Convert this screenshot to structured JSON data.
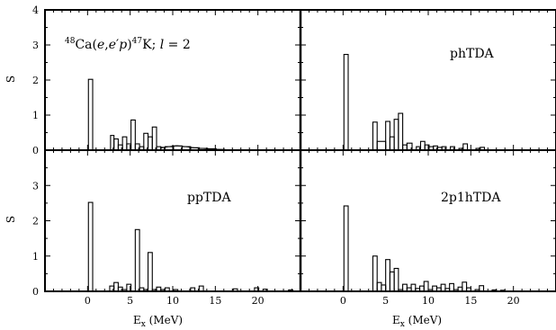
{
  "chart_data": [
    {
      "type": "bar",
      "panel": "top-left",
      "label_text": "Ca(e,e'p)K; l = 2",
      "label_parts": {
        "mass_a": "48",
        "element_a": "Ca",
        "paren_open": "(",
        "reaction_e1": "e",
        "comma": ",",
        "reaction_e2": "e",
        "prime": "′",
        "reaction_p": "p",
        "paren_close": ")",
        "mass_b": "47",
        "element_b": "K",
        "semicolon": "; ",
        "l_symbol": "l",
        "l_value": " = 2"
      },
      "ylabel": "S",
      "xlabel": "",
      "xlim": [
        -5,
        25
      ],
      "ylim": [
        0,
        4
      ],
      "yticks": [
        "0",
        "1",
        "2",
        "3",
        "4"
      ],
      "xticks": [],
      "bars": [
        {
          "x0": 0.1,
          "x1": 0.6,
          "y": 2.02
        },
        {
          "x0": 2.7,
          "x1": 3.1,
          "y": 0.42
        },
        {
          "x0": 3.1,
          "x1": 3.6,
          "y": 0.32
        },
        {
          "x0": 3.6,
          "x1": 4.1,
          "y": 0.15
        },
        {
          "x0": 4.1,
          "x1": 4.6,
          "y": 0.38
        },
        {
          "x0": 4.6,
          "x1": 5.1,
          "y": 0.18
        },
        {
          "x0": 5.1,
          "x1": 5.6,
          "y": 0.86
        },
        {
          "x0": 5.6,
          "x1": 6.1,
          "y": 0.18
        },
        {
          "x0": 6.1,
          "x1": 6.6,
          "y": 0.1
        },
        {
          "x0": 6.6,
          "x1": 7.1,
          "y": 0.48
        },
        {
          "x0": 7.1,
          "x1": 7.6,
          "y": 0.38
        },
        {
          "x0": 7.6,
          "x1": 8.1,
          "y": 0.66
        },
        {
          "x0": 8.1,
          "x1": 8.6,
          "y": 0.1
        },
        {
          "x0": 8.6,
          "x1": 9.1,
          "y": 0.08
        },
        {
          "x0": 9.1,
          "x1": 10.1,
          "y": 0.1
        },
        {
          "x0": 10.1,
          "x1": 11.1,
          "y": 0.12
        },
        {
          "x0": 11.1,
          "x1": 12.1,
          "y": 0.1
        },
        {
          "x0": 12.1,
          "x1": 13.1,
          "y": 0.07
        },
        {
          "x0": 13.1,
          "x1": 14.1,
          "y": 0.05
        },
        {
          "x0": 14.1,
          "x1": 15.1,
          "y": 0.04
        },
        {
          "x0": 15.1,
          "x1": 16.1,
          "y": 0.02
        }
      ],
      "curve": [
        [
          8.6,
          0.06
        ],
        [
          9.5,
          0.1
        ],
        [
          10.5,
          0.13
        ],
        [
          11.5,
          0.1
        ],
        [
          12.5,
          0.07
        ],
        [
          13.5,
          0.05
        ],
        [
          14.5,
          0.03
        ],
        [
          16,
          0.015
        ],
        [
          18,
          0.005
        ]
      ]
    },
    {
      "type": "bar",
      "panel": "top-right",
      "label_text": "phTDA",
      "ylabel": "",
      "xlabel": "",
      "xlim": [
        -5,
        25
      ],
      "ylim": [
        0,
        4
      ],
      "yticks": [],
      "xticks": [],
      "bars": [
        {
          "x0": 0.1,
          "x1": 0.6,
          "y": 2.73
        },
        {
          "x0": 3.5,
          "x1": 4.0,
          "y": 0.8
        },
        {
          "x0": 4.0,
          "x1": 5.0,
          "y": 0.25
        },
        {
          "x0": 5.0,
          "x1": 5.5,
          "y": 0.82
        },
        {
          "x0": 5.5,
          "x1": 6.0,
          "y": 0.38
        },
        {
          "x0": 6.0,
          "x1": 6.5,
          "y": 0.88
        },
        {
          "x0": 6.5,
          "x1": 7.0,
          "y": 1.05
        },
        {
          "x0": 7.0,
          "x1": 7.5,
          "y": 0.15
        },
        {
          "x0": 7.5,
          "x1": 8.1,
          "y": 0.2
        },
        {
          "x0": 8.6,
          "x1": 9.1,
          "y": 0.1
        },
        {
          "x0": 9.1,
          "x1": 9.6,
          "y": 0.25
        },
        {
          "x0": 9.6,
          "x1": 10.1,
          "y": 0.15
        },
        {
          "x0": 10.1,
          "x1": 10.6,
          "y": 0.1
        },
        {
          "x0": 10.6,
          "x1": 11.1,
          "y": 0.12
        },
        {
          "x0": 11.1,
          "x1": 11.6,
          "y": 0.08
        },
        {
          "x0": 11.6,
          "x1": 12.1,
          "y": 0.1
        },
        {
          "x0": 12.6,
          "x1": 13.1,
          "y": 0.1
        },
        {
          "x0": 13.6,
          "x1": 14.1,
          "y": 0.05
        },
        {
          "x0": 14.1,
          "x1": 14.6,
          "y": 0.18
        },
        {
          "x0": 15.6,
          "x1": 16.1,
          "y": 0.05
        },
        {
          "x0": 16.1,
          "x1": 16.6,
          "y": 0.08
        }
      ]
    },
    {
      "type": "bar",
      "panel": "bottom-left",
      "label_text": "ppTDA",
      "ylabel": "S",
      "xlabel": "Ex (MeV)",
      "xlabel_main": "E",
      "xlabel_sub": "x",
      "xlabel_unit": " (MeV)",
      "xlim": [
        -5,
        25
      ],
      "ylim": [
        0,
        4
      ],
      "yticks": [
        "0",
        "1",
        "2",
        "3"
      ],
      "xticks": [
        "0",
        "5",
        "10",
        "15",
        "20"
      ],
      "bars": [
        {
          "x0": 0.1,
          "x1": 0.6,
          "y": 2.52
        },
        {
          "x0": 2.6,
          "x1": 3.1,
          "y": 0.15
        },
        {
          "x0": 3.1,
          "x1": 3.6,
          "y": 0.25
        },
        {
          "x0": 3.6,
          "x1": 4.1,
          "y": 0.12
        },
        {
          "x0": 4.1,
          "x1": 4.6,
          "y": 0.05
        },
        {
          "x0": 4.6,
          "x1": 5.1,
          "y": 0.2
        },
        {
          "x0": 5.6,
          "x1": 6.1,
          "y": 1.75
        },
        {
          "x0": 6.1,
          "x1": 6.6,
          "y": 0.1
        },
        {
          "x0": 6.6,
          "x1": 7.1,
          "y": 0.05
        },
        {
          "x0": 7.1,
          "x1": 7.6,
          "y": 1.1
        },
        {
          "x0": 7.6,
          "x1": 8.1,
          "y": 0.05
        },
        {
          "x0": 8.1,
          "x1": 8.6,
          "y": 0.12
        },
        {
          "x0": 8.6,
          "x1": 9.1,
          "y": 0.05
        },
        {
          "x0": 9.1,
          "x1": 9.6,
          "y": 0.1
        },
        {
          "x0": 10.1,
          "x1": 10.6,
          "y": 0.05
        },
        {
          "x0": 12.1,
          "x1": 12.6,
          "y": 0.1
        },
        {
          "x0": 13.1,
          "x1": 13.6,
          "y": 0.15
        },
        {
          "x0": 17.1,
          "x1": 17.6,
          "y": 0.07
        },
        {
          "x0": 19.6,
          "x1": 20.1,
          "y": 0.1
        },
        {
          "x0": 20.6,
          "x1": 21.1,
          "y": 0.06
        },
        {
          "x0": 23.6,
          "x1": 24.1,
          "y": 0.04
        }
      ]
    },
    {
      "type": "bar",
      "panel": "bottom-right",
      "label_text": "2p1hTDA",
      "ylabel": "",
      "xlabel": "Ex (MeV)",
      "xlabel_main": "E",
      "xlabel_sub": "x",
      "xlabel_unit": " (MeV)",
      "xlim": [
        -5,
        25
      ],
      "ylim": [
        0,
        4
      ],
      "yticks": [],
      "xticks": [
        "0",
        "5",
        "10",
        "15",
        "20"
      ],
      "bars": [
        {
          "x0": 0.1,
          "x1": 0.6,
          "y": 2.42
        },
        {
          "x0": 3.5,
          "x1": 4.0,
          "y": 1.0
        },
        {
          "x0": 4.0,
          "x1": 4.5,
          "y": 0.25
        },
        {
          "x0": 4.5,
          "x1": 5.0,
          "y": 0.18
        },
        {
          "x0": 5.0,
          "x1": 5.5,
          "y": 0.9
        },
        {
          "x0": 5.5,
          "x1": 6.0,
          "y": 0.55
        },
        {
          "x0": 6.0,
          "x1": 6.5,
          "y": 0.65
        },
        {
          "x0": 6.5,
          "x1": 7.0,
          "y": 0.05
        },
        {
          "x0": 7.0,
          "x1": 7.5,
          "y": 0.2
        },
        {
          "x0": 7.5,
          "x1": 8.0,
          "y": 0.1
        },
        {
          "x0": 8.0,
          "x1": 8.5,
          "y": 0.2
        },
        {
          "x0": 8.5,
          "x1": 9.0,
          "y": 0.08
        },
        {
          "x0": 9.0,
          "x1": 9.5,
          "y": 0.15
        },
        {
          "x0": 9.5,
          "x1": 10.0,
          "y": 0.28
        },
        {
          "x0": 10.0,
          "x1": 10.5,
          "y": 0.05
        },
        {
          "x0": 10.5,
          "x1": 11.0,
          "y": 0.15
        },
        {
          "x0": 11.0,
          "x1": 11.5,
          "y": 0.1
        },
        {
          "x0": 11.5,
          "x1": 12.0,
          "y": 0.2
        },
        {
          "x0": 12.0,
          "x1": 12.5,
          "y": 0.08
        },
        {
          "x0": 12.5,
          "x1": 13.0,
          "y": 0.22
        },
        {
          "x0": 13.0,
          "x1": 13.5,
          "y": 0.05
        },
        {
          "x0": 13.5,
          "x1": 14.0,
          "y": 0.12
        },
        {
          "x0": 14.0,
          "x1": 14.5,
          "y": 0.26
        },
        {
          "x0": 14.5,
          "x1": 15.0,
          "y": 0.1
        },
        {
          "x0": 15.5,
          "x1": 16.0,
          "y": 0.05
        },
        {
          "x0": 16.0,
          "x1": 16.5,
          "y": 0.16
        },
        {
          "x0": 17.5,
          "x1": 18.0,
          "y": 0.04
        },
        {
          "x0": 18.5,
          "x1": 19.0,
          "y": 0.03
        }
      ]
    }
  ]
}
